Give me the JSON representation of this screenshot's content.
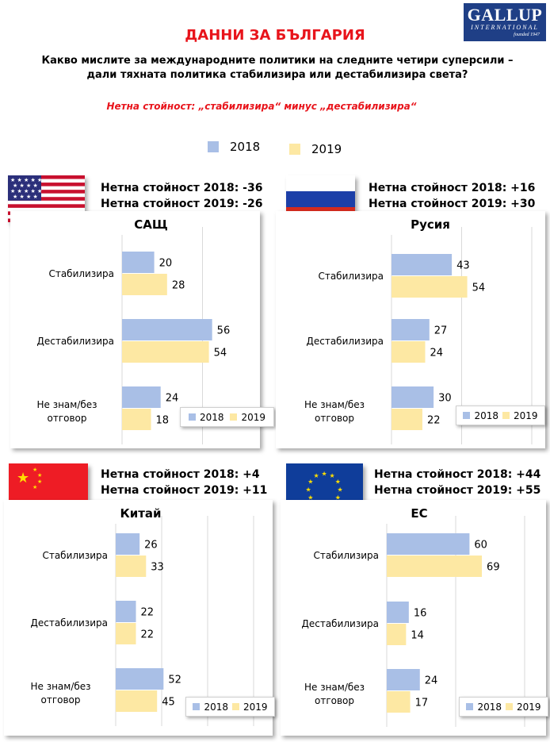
{
  "logo": {
    "name": "GALLUP",
    "sub": "INTERNATIONAL",
    "founded": "founded 1947"
  },
  "heading": "ДАННИ ЗА БЪЛГАРИЯ",
  "question": "Какво мислите за международните политики на следните четири суперсили – дали тяхната политика стабилизира или дестабилизира света?",
  "note": "Нетна стойност: „стабилизира“ минус „дестабилизира“",
  "legend": {
    "y2018": "2018",
    "y2019": "2019"
  },
  "colors": {
    "s2018": "#a9bfe6",
    "s2019": "#fde8a3",
    "accent": "#e8141b",
    "logo": "#1f3f86"
  },
  "panels": {
    "usa": {
      "net2018": "Нетна стойност  2018: -36",
      "net2019": "Нетна стойност  2019: -26",
      "title": "САЩ"
    },
    "russia": {
      "net2018": "Нетна стойност  2018: +16",
      "net2019": "Нетна стойност  2019: +30",
      "title": "Русия"
    },
    "china": {
      "net2018": "Нетна стойност  2018: +4",
      "net2019": "Нетна стойност  2019: +11",
      "title": "Китай"
    },
    "eu": {
      "net2018": "Нетна стойност  2018: +44",
      "net2019": "Нетна стойност  2019: +55",
      "title": "ЕС"
    }
  },
  "chart_data": [
    {
      "id": "usa",
      "type": "bar",
      "title": "САЩ",
      "categories": [
        "Стабилизира",
        "Дестабилизира",
        "Не знам/без отговор"
      ],
      "series": [
        {
          "name": "2018",
          "values": [
            20,
            56,
            24
          ]
        },
        {
          "name": "2019",
          "values": [
            28,
            54,
            18
          ]
        }
      ],
      "xlim": [
        0,
        100
      ]
    },
    {
      "id": "russia",
      "type": "bar",
      "title": "Русия",
      "categories": [
        "Стабилизира",
        "Дестабилизира",
        "Не знам/без отговор"
      ],
      "series": [
        {
          "name": "2018",
          "values": [
            43,
            27,
            30
          ]
        },
        {
          "name": "2019",
          "values": [
            54,
            24,
            22
          ]
        }
      ],
      "xlim": [
        0,
        100
      ]
    },
    {
      "id": "china",
      "type": "bar",
      "title": "Китай",
      "categories": [
        "Стабилизира",
        "Дестабилизира",
        "Не знам/без отговор"
      ],
      "series": [
        {
          "name": "2018",
          "values": [
            26,
            22,
            52
          ]
        },
        {
          "name": "2019",
          "values": [
            33,
            22,
            45
          ]
        }
      ],
      "xlim": [
        0,
        100
      ]
    },
    {
      "id": "eu",
      "type": "bar",
      "title": "ЕС",
      "categories": [
        "Стабилизира",
        "Дестабилизира",
        "Не знам/без отговор"
      ],
      "series": [
        {
          "name": "2018",
          "values": [
            60,
            16,
            24
          ]
        },
        {
          "name": "2019",
          "values": [
            69,
            14,
            17
          ]
        }
      ],
      "xlim": [
        0,
        100
      ]
    }
  ]
}
